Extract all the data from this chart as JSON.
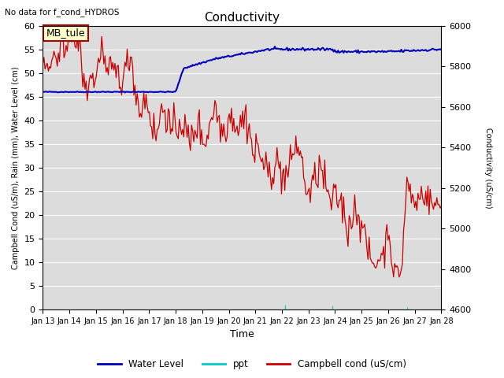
{
  "title": "Conductivity",
  "top_left_text": "No data for f_cond_HYDROS",
  "annotation_box": "MB_tule",
  "xlabel": "Time",
  "ylabel_left": "Campbell Cond (uS/m), Rain (mm), Water Level (cm)",
  "ylabel_right": "Conductivity (uS/cm)",
  "ylim_left": [
    0,
    60
  ],
  "ylim_right": [
    4600,
    6000
  ],
  "yticks_left": [
    0,
    5,
    10,
    15,
    20,
    25,
    30,
    35,
    40,
    45,
    50,
    55,
    60
  ],
  "yticks_right": [
    4600,
    4800,
    5000,
    5200,
    5400,
    5600,
    5800,
    6000
  ],
  "xtick_labels": [
    "Jan 13",
    "Jan 14",
    "Jan 15",
    "Jan 16",
    "Jan 17",
    "Jan 18",
    "Jan 19",
    "Jan 20",
    "Jan 21",
    "Jan 22",
    "Jan 23",
    "Jan 24",
    "Jan 25",
    "Jan 26",
    "Jan 27",
    "Jan 28"
  ],
  "bg_color": "#dcdcdc",
  "plot_bg_color": "#dcdcdc",
  "water_level_color": "#0000bb",
  "ppt_color": "#00cccc",
  "campbell_color": "#cc0000",
  "legend_labels": [
    "Water Level",
    "ppt",
    "Campbell cond (uS/cm)"
  ],
  "annotation_bg": "#ffffcc",
  "annotation_border": "#aa0000",
  "grid_color": "#ffffff"
}
